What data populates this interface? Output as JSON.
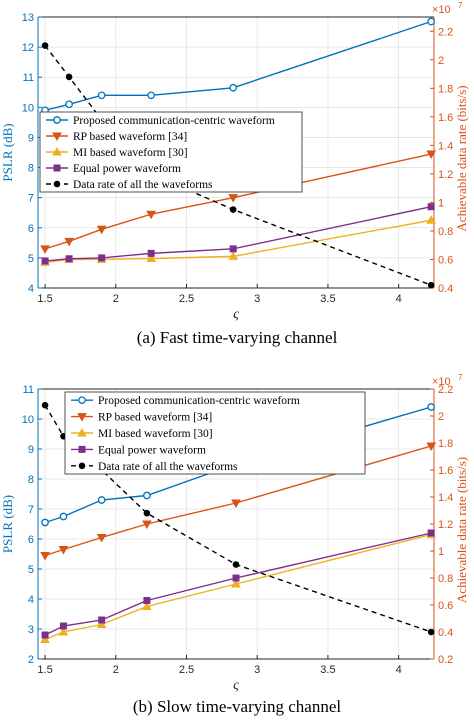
{
  "figure": {
    "captions": [
      "(a)  Fast time-varying channel",
      "(b)  Slow time-varying channel"
    ],
    "colors": {
      "left_axis": "#0072BD",
      "right_axis": "#D95319",
      "proposed": "#0072BD",
      "rp": "#D95319",
      "mi": "#EDB120",
      "equal": "#7E2F8E",
      "rate": "#000000"
    }
  },
  "chart_data": [
    {
      "type": "line",
      "title": "",
      "xlabel": "ς",
      "ylabel": "PSLR (dB)",
      "ylabel_right": "Achievable data rate (bits/s)",
      "right_exponent": "×10",
      "right_exponent_power": "7",
      "xlim": [
        1.45,
        4.25
      ],
      "ylim": [
        4,
        13
      ],
      "ylim_right": [
        0.4,
        2.3
      ],
      "x_ticks": [
        1.5,
        2,
        2.5,
        3,
        3.5,
        4
      ],
      "x_tick_labels": [
        "1.5",
        "2",
        "2.5",
        "3",
        "3.5",
        "4"
      ],
      "y_ticks": [
        4,
        5,
        6,
        7,
        8,
        9,
        10,
        11,
        12,
        13
      ],
      "y_tick_labels": [
        "4",
        "5",
        "6",
        "7",
        "8",
        "9",
        "10",
        "11",
        "12",
        "13"
      ],
      "y_right_ticks": [
        0.4,
        0.6,
        0.8,
        1.0,
        1.2,
        1.4,
        1.6,
        1.8,
        2.0,
        2.2
      ],
      "y_right_tick_labels": [
        "0.4",
        "0.6",
        "0.8",
        "1",
        "1.2",
        "1.4",
        "1.6",
        "1.8",
        "2",
        "2.2"
      ],
      "grid": true,
      "legend_placement": "center-left",
      "series": [
        {
          "name": "Proposed communication-centric waveform",
          "axis": "left",
          "marker": "circle",
          "style": "solid",
          "x": [
            1.5,
            1.67,
            1.9,
            2.25,
            2.83,
            4.23
          ],
          "values": [
            9.9,
            10.1,
            10.4,
            10.4,
            10.65,
            12.85
          ]
        },
        {
          "name": "RP based waveform [34]",
          "axis": "left",
          "marker": "triangle-down",
          "style": "solid",
          "x": [
            1.5,
            1.67,
            1.9,
            2.25,
            2.83,
            4.23
          ],
          "values": [
            5.3,
            5.55,
            5.95,
            6.45,
            7.0,
            8.45
          ]
        },
        {
          "name": "MI based waveform [30]",
          "axis": "left",
          "marker": "triangle-up",
          "style": "solid",
          "x": [
            1.5,
            1.67,
            1.9,
            2.25,
            2.83,
            4.23
          ],
          "values": [
            4.85,
            4.95,
            4.95,
            4.98,
            5.05,
            6.25
          ]
        },
        {
          "name": "Equal power waveform",
          "axis": "left",
          "marker": "square",
          "style": "solid",
          "x": [
            1.5,
            1.67,
            1.9,
            2.25,
            2.83,
            4.23
          ],
          "values": [
            4.9,
            4.97,
            5.0,
            5.15,
            5.3,
            6.7
          ]
        },
        {
          "name": "Data rate of all the waveforms",
          "axis": "right",
          "marker": "dot",
          "style": "dashed",
          "x": [
            1.5,
            1.67,
            1.9,
            2.25,
            2.83,
            4.23
          ],
          "values": [
            2.1,
            1.88,
            1.58,
            1.2,
            0.95,
            0.42
          ]
        }
      ]
    },
    {
      "type": "line",
      "title": "",
      "xlabel": "ς",
      "ylabel": "PSLR (dB)",
      "ylabel_right": "Achievable data rate (bits/s)",
      "right_exponent": "×10",
      "right_exponent_power": "7",
      "xlim": [
        1.45,
        4.25
      ],
      "ylim": [
        2,
        11
      ],
      "ylim_right": [
        0.2,
        2.2
      ],
      "x_ticks": [
        1.5,
        2,
        2.5,
        3,
        3.5,
        4
      ],
      "x_tick_labels": [
        "1.5",
        "2",
        "2.5",
        "3",
        "3.5",
        "4"
      ],
      "y_ticks": [
        2,
        3,
        4,
        5,
        6,
        7,
        8,
        9,
        10,
        11
      ],
      "y_tick_labels": [
        "2",
        "3",
        "4",
        "5",
        "6",
        "7",
        "8",
        "9",
        "10",
        "11"
      ],
      "y_right_ticks": [
        0.2,
        0.4,
        0.6,
        0.8,
        1.0,
        1.2,
        1.4,
        1.6,
        1.8,
        2.0,
        2.2
      ],
      "y_right_tick_labels": [
        "0.2",
        "0.4",
        "0.6",
        "0.8",
        "1",
        "1.2",
        "1.4",
        "1.6",
        "1.8",
        "2",
        "2.2"
      ],
      "grid": true,
      "legend_placement": "top-left",
      "series": [
        {
          "name": "Proposed communication-centric waveform",
          "axis": "left",
          "marker": "circle",
          "style": "solid",
          "x": [
            1.5,
            1.63,
            1.9,
            2.22,
            2.85,
            4.23
          ],
          "values": [
            6.55,
            6.75,
            7.3,
            7.45,
            8.5,
            10.4
          ]
        },
        {
          "name": "RP based waveform [34]",
          "axis": "left",
          "marker": "triangle-down",
          "style": "solid",
          "x": [
            1.5,
            1.63,
            1.9,
            2.22,
            2.85,
            4.23
          ],
          "values": [
            5.45,
            5.65,
            6.05,
            6.5,
            7.2,
            9.1
          ]
        },
        {
          "name": "MI based waveform [30]",
          "axis": "left",
          "marker": "triangle-up",
          "style": "solid",
          "x": [
            1.5,
            1.63,
            1.9,
            2.22,
            2.85,
            4.23
          ],
          "values": [
            2.65,
            2.9,
            3.15,
            3.75,
            4.5,
            6.15
          ]
        },
        {
          "name": "Equal power waveform",
          "axis": "left",
          "marker": "square",
          "style": "solid",
          "x": [
            1.5,
            1.63,
            1.9,
            2.22,
            2.85,
            4.23
          ],
          "values": [
            2.8,
            3.1,
            3.3,
            3.95,
            4.7,
            6.2
          ]
        },
        {
          "name": "Data rate of all the waveforms",
          "axis": "right",
          "marker": "dot",
          "style": "dashed",
          "x": [
            1.5,
            1.63,
            1.9,
            2.22,
            2.85,
            4.23
          ],
          "values": [
            2.08,
            1.85,
            1.6,
            1.28,
            0.9,
            0.4
          ]
        }
      ]
    }
  ]
}
